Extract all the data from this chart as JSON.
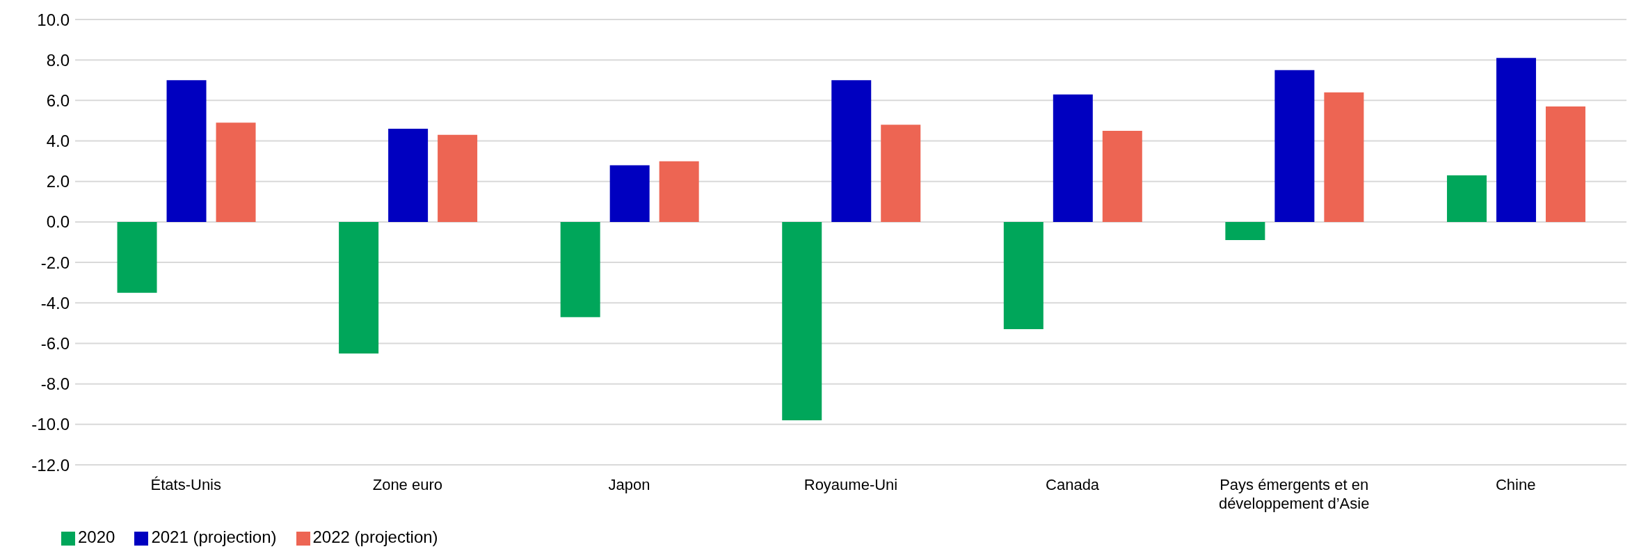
{
  "chart_data": {
    "type": "bar",
    "categories": [
      "États-Unis",
      "Zone euro",
      "Japon",
      "Royaume-Uni",
      "Canada",
      "Pays émergents et en développement d’Asie",
      "Chine"
    ],
    "series": [
      {
        "name": "2020",
        "color": "#00a65a",
        "values": [
          -3.5,
          -6.5,
          -4.7,
          -9.8,
          -5.3,
          -0.9,
          2.3
        ]
      },
      {
        "name": "2021 (projection)",
        "color": "#0000c0",
        "values": [
          7.0,
          4.6,
          2.8,
          7.0,
          6.3,
          7.5,
          8.1
        ]
      },
      {
        "name": "2022 (projection)",
        "color": "#ed6553",
        "values": [
          4.9,
          4.3,
          3.0,
          4.8,
          4.5,
          6.4,
          5.7
        ]
      }
    ],
    "ylim": [
      -12,
      10
    ],
    "yticks": [
      {
        "value": -12,
        "label": "-12.0"
      },
      {
        "value": -10,
        "label": "-10.0"
      },
      {
        "value": -8,
        "label": "-8.0"
      },
      {
        "value": -6,
        "label": "-6.0"
      },
      {
        "value": -4,
        "label": "-4.0"
      },
      {
        "value": -2,
        "label": "-2.0"
      },
      {
        "value": 0,
        "label": "0.0"
      },
      {
        "value": 2,
        "label": "2.0"
      },
      {
        "value": 4,
        "label": "4.0"
      },
      {
        "value": 6,
        "label": "6.0"
      },
      {
        "value": 8,
        "label": "8.0"
      },
      {
        "value": 10,
        "label": "10.0"
      }
    ],
    "grid": "y",
    "legend": "bottom left"
  }
}
